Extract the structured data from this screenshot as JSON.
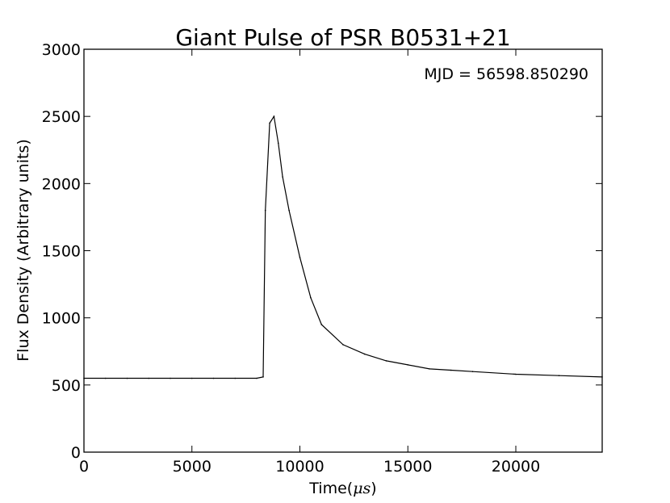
{
  "chart_data": {
    "type": "line",
    "title": "Giant Pulse of PSR B0531+21",
    "xlabel_text": "Time(",
    "xlabel_symbol": "μs",
    "xlabel_close": ")",
    "ylabel": "Flux Density (Arbitrary units)",
    "annotation": "MJD = 56598.850290",
    "xlim": [
      0,
      24000
    ],
    "ylim": [
      0,
      3000
    ],
    "xticks": [
      0,
      5000,
      10000,
      15000,
      20000
    ],
    "xtick_labels": [
      "0",
      "5000",
      "10000",
      "15000",
      "20000"
    ],
    "yticks": [
      0,
      500,
      1000,
      1500,
      2000,
      2500,
      3000
    ],
    "ytick_labels": [
      "0",
      "500",
      "1000",
      "1500",
      "2000",
      "2500",
      "3000"
    ],
    "grid": false,
    "line_color": "#000000",
    "series": [
      {
        "x": [
          0,
          1000,
          2000,
          3000,
          4000,
          5000,
          6000,
          7000,
          8000,
          8300,
          8400,
          8600,
          8800,
          9000,
          9200,
          9500,
          10000,
          10500,
          11000,
          12000,
          13000,
          14000,
          15000,
          16000,
          17000,
          18000,
          20000,
          22000,
          24000
        ],
        "values": [
          550,
          550,
          550,
          550,
          550,
          550,
          550,
          550,
          550,
          560,
          1800,
          2450,
          2500,
          2300,
          2050,
          1800,
          1450,
          1150,
          950,
          800,
          730,
          680,
          650,
          620,
          610,
          600,
          580,
          570,
          560
        ]
      }
    ]
  }
}
